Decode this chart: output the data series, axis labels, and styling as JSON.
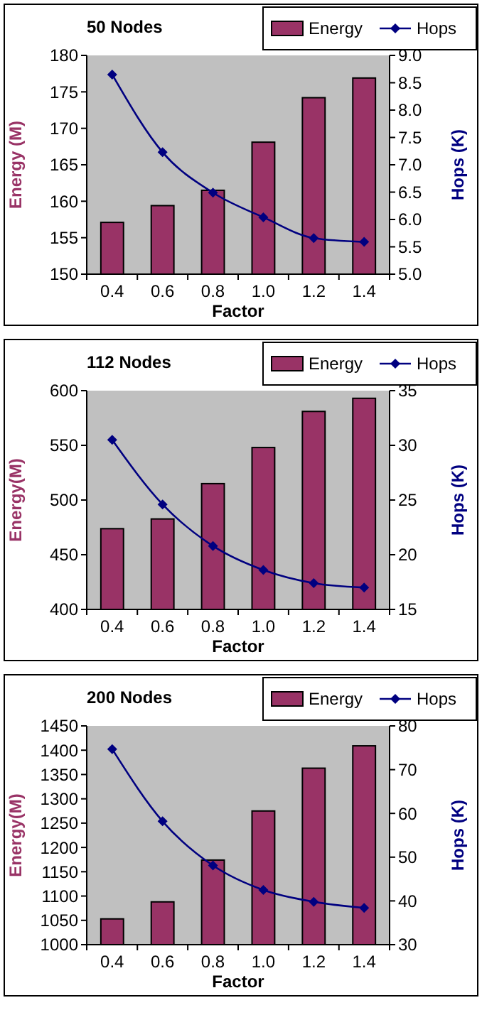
{
  "chart_data": [
    {
      "type": "bar",
      "title": "50 Nodes",
      "categories": [
        "0.4",
        "0.6",
        "0.8",
        "1.0",
        "1.2",
        "1.4"
      ],
      "xlabel": "Factor",
      "ylabel": "Energy (M)",
      "y2label": "Hops (K)",
      "ylim": [
        150,
        180
      ],
      "yticks": [
        150,
        155,
        160,
        165,
        170,
        175,
        180
      ],
      "y2lim": [
        5,
        9
      ],
      "y2ticks": [
        {
          "value": 5,
          "label": "5.0"
        },
        5.5,
        {
          "value": 6,
          "label": "6.0"
        },
        6.5,
        {
          "value": 7,
          "label": "7.0"
        },
        7.5,
        {
          "value": 8,
          "label": "8.0"
        },
        8.5,
        {
          "value": 9,
          "label": "9.0"
        }
      ],
      "legend": "top right",
      "series": [
        {
          "name": "Energy",
          "color": "#993366",
          "values": [
            157.1,
            159.4,
            161.5,
            168.1,
            174.2,
            176.9
          ]
        },
        {
          "name": "Hops",
          "type": "line",
          "axis": "y2",
          "marker": "diamond",
          "color": "#000080",
          "values": [
            8.65,
            7.23,
            6.49,
            6.04,
            5.66,
            5.59
          ]
        }
      ]
    },
    {
      "type": "bar",
      "title": "112 Nodes",
      "categories": [
        "0.4",
        "0.6",
        "0.8",
        "1.0",
        "1.2",
        "1.4"
      ],
      "xlabel": "Factor",
      "ylabel": "Energy(M)",
      "y2label": "Hops (K)",
      "ylim": [
        400,
        600
      ],
      "yticks": [
        400,
        450,
        500,
        550,
        600
      ],
      "y2lim": [
        15,
        35
      ],
      "y2ticks": [
        15,
        20,
        25,
        30,
        35
      ],
      "legend": "top right",
      "series": [
        {
          "name": "Energy",
          "color": "#993366",
          "values": [
            473.8,
            482.7,
            515,
            548,
            581,
            593
          ]
        },
        {
          "name": "Hops",
          "type": "line",
          "axis": "y2",
          "marker": "diamond",
          "color": "#000080",
          "values": [
            30.5,
            24.6,
            20.8,
            18.6,
            17.4,
            17.0
          ]
        }
      ]
    },
    {
      "type": "bar",
      "title": "200 Nodes",
      "categories": [
        "0.4",
        "0.6",
        "0.8",
        "1.0",
        "1.2",
        "1.4"
      ],
      "xlabel": "Factor",
      "ylabel": "Energy(M)",
      "y2label": "Hops (K)",
      "ylim": [
        1000,
        1450
      ],
      "yticks": [
        1000,
        1050,
        1100,
        1150,
        1200,
        1250,
        1300,
        1350,
        1400,
        1450
      ],
      "y2lim": [
        30,
        80
      ],
      "y2ticks": [
        30,
        40,
        50,
        60,
        70,
        80
      ],
      "legend": "top right",
      "series": [
        {
          "name": "Energy",
          "color": "#993366",
          "values": [
            1053,
            1088,
            1174,
            1275,
            1363,
            1409
          ]
        },
        {
          "name": "Hops",
          "type": "line",
          "axis": "y2",
          "marker": "diamond",
          "color": "#000080",
          "values": [
            74.7,
            58.2,
            48.1,
            42.5,
            39.8,
            38.4
          ]
        }
      ]
    }
  ]
}
